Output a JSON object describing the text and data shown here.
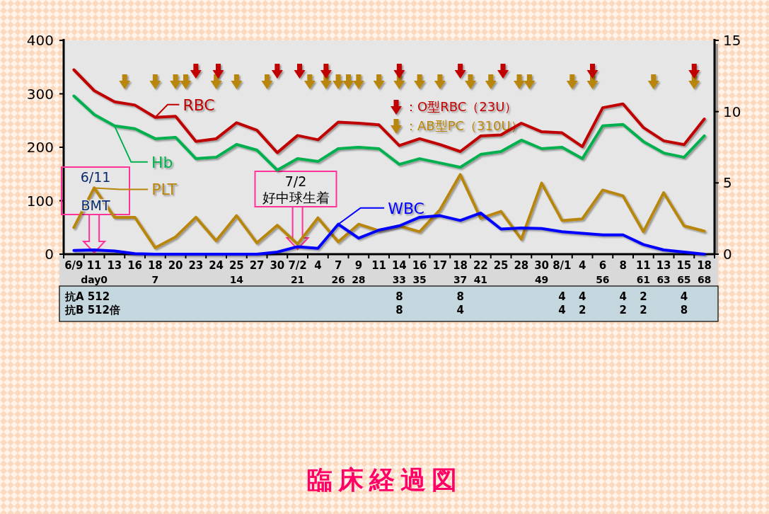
{
  "chart_data": {
    "type": "line",
    "title": "臨床経過図",
    "categories": [
      "6/9",
      "11\nday0",
      "13",
      "16",
      "18\n7",
      "20",
      "23",
      "24",
      "25\n14",
      "27",
      "30",
      "7/2\n21",
      "4",
      "7\n26",
      "9\n28",
      "11",
      "14\n33\n8\n8",
      "16\n35",
      "17",
      "18\n37\n8\n4",
      "22\n41",
      "25",
      "28",
      "30\n49",
      "8/1\n\n4\n4",
      "4\n\n4\n2",
      "6\n56",
      "8\n\n4\n2",
      "11\n61\n2\n2",
      "13\n63",
      "15\n65\n4\n8",
      "18\n68"
    ],
    "legend": "left",
    "ylim": [
      0,
      400
    ],
    "yticks": [
      0,
      100,
      200,
      300,
      400
    ],
    "y2lim": [
      0,
      15
    ],
    "y2ticks": [
      0,
      5,
      10,
      15
    ],
    "series": [
      {
        "name": "RBC",
        "color": "#c00000",
        "values": [
          345,
          306,
          285,
          279,
          256,
          258,
          211,
          216,
          246,
          232,
          190,
          222,
          214,
          247,
          245,
          242,
          203,
          216,
          205,
          192,
          221,
          223,
          245,
          229,
          227,
          201,
          274,
          281,
          237,
          212,
          205,
          253
        ]
      },
      {
        "name": "Hb",
        "axis": "y2",
        "color": "#00b050",
        "values": [
          11.1,
          9.8,
          9.0,
          8.8,
          8.1,
          8.2,
          6.7,
          6.8,
          7.7,
          7.3,
          5.9,
          6.7,
          6.5,
          7.4,
          7.5,
          7.4,
          6.3,
          6.7,
          6.4,
          6.1,
          7.0,
          7.2,
          8.0,
          7.4,
          7.5,
          6.7,
          9.0,
          9.1,
          7.9,
          7.1,
          6.8,
          8.3
        ]
      },
      {
        "name": "PLT",
        "color": "#b8860b",
        "values": [
          50,
          124,
          69,
          69,
          12,
          32,
          69,
          25,
          72,
          21,
          54,
          19,
          68,
          23,
          56,
          44,
          53,
          42,
          83,
          149,
          67,
          80,
          28,
          133,
          63,
          66,
          120,
          109,
          42,
          115,
          53,
          43
        ]
      },
      {
        "name": "WBC",
        "color": "#0000ff",
        "values": [
          7,
          8,
          6,
          1,
          0,
          0,
          0,
          0,
          0,
          0,
          4,
          14,
          11,
          56,
          30,
          45,
          53,
          69,
          72,
          63,
          77,
          47,
          49,
          48,
          42,
          39,
          36,
          36,
          18,
          8,
          4,
          0
        ]
      }
    ],
    "annotations": [
      "抗A 512",
      "抗B 512倍",
      "6/11\nBMT",
      "7/2\n好中球生着",
      "：O型RBC（23U）",
      "：AB型PC（310U）"
    ]
  }
}
